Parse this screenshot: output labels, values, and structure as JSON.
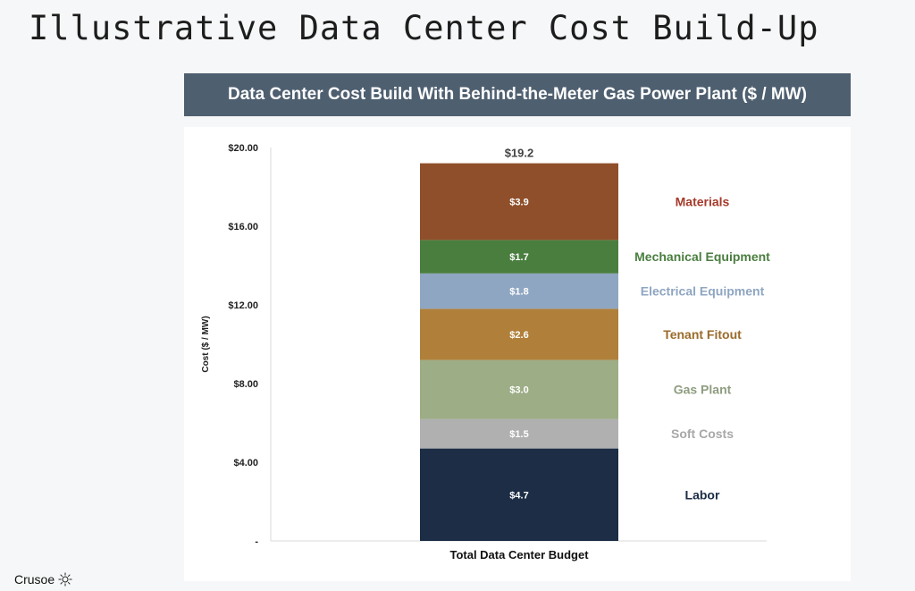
{
  "slide": {
    "title": "Illustrative Data Center Cost Build-Up"
  },
  "chart_header": {
    "title": "Data Center Cost Build With Behind-the-Meter Gas Power Plant ($ / MW)"
  },
  "footer": {
    "brand": "Crusoe",
    "logo_icon": "sun-burst-icon"
  },
  "chart_data": {
    "type": "bar",
    "stacked": true,
    "categories": [
      "Total Data Center Budget"
    ],
    "series": [
      {
        "name": "Labor",
        "value_label": "$4.7",
        "values": [
          4.7
        ],
        "color": "#1c2d45",
        "label_color": "#1c2d45"
      },
      {
        "name": "Soft Costs",
        "value_label": "$1.5",
        "values": [
          1.5
        ],
        "color": "#b0b0b0",
        "label_color": "#a8a8a8"
      },
      {
        "name": "Gas Plant",
        "value_label": "$3.0",
        "values": [
          3.0
        ],
        "color": "#9dad86",
        "label_color": "#8f9d80"
      },
      {
        "name": "Tenant Fitout",
        "value_label": "$2.6",
        "values": [
          2.6
        ],
        "color": "#b0803a",
        "label_color": "#9b6b2b"
      },
      {
        "name": "Electrical Equipment",
        "value_label": "$1.8",
        "values": [
          1.8
        ],
        "color": "#8fa6c2",
        "label_color": "#8fa6c2"
      },
      {
        "name": "Mechanical Equipment",
        "value_label": "$1.7",
        "values": [
          1.7
        ],
        "color": "#4a7e3f",
        "label_color": "#4a7e3f"
      },
      {
        "name": "Materials",
        "value_label": "$3.9",
        "values": [
          3.9
        ],
        "color": "#8f4f2a",
        "label_color": "#a53a2a"
      }
    ],
    "total_label": "$19.2",
    "ylabel": "Cost ($ / MW)",
    "xlabel": "",
    "ylim": [
      0,
      20
    ],
    "y_ticks": [
      {
        "value": 0,
        "label": "-"
      },
      {
        "value": 4,
        "label": "$4.00"
      },
      {
        "value": 8,
        "label": "$8.00"
      },
      {
        "value": 12,
        "label": "$12.00"
      },
      {
        "value": 16,
        "label": "$16.00"
      },
      {
        "value": 20,
        "label": "$20.00"
      }
    ],
    "grid": false,
    "legend": "right-inline"
  }
}
